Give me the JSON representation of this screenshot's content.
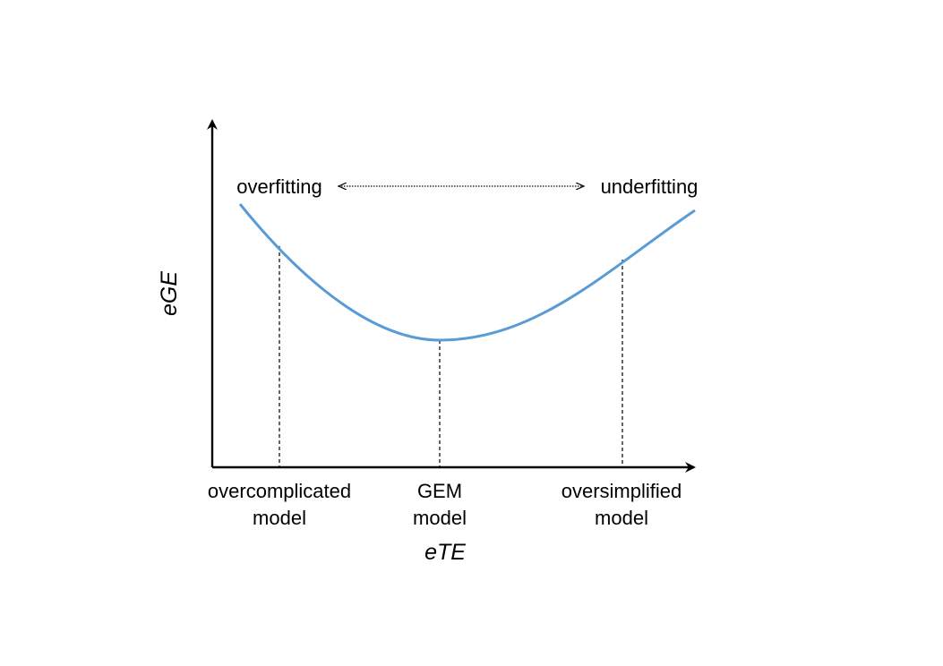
{
  "axes": {
    "y_label": "eGE",
    "x_label": "eTE"
  },
  "regime_arrow": {
    "left_label": "overfitting",
    "right_label": "underfitting"
  },
  "markers": [
    {
      "line1": "overcomplicated",
      "line2": "model"
    },
    {
      "line1": "GEM",
      "line2": "model"
    },
    {
      "line1": "oversimplified",
      "line2": "model"
    }
  ],
  "colors": {
    "curve": "#5b9bd5",
    "axes": "#000000"
  }
}
